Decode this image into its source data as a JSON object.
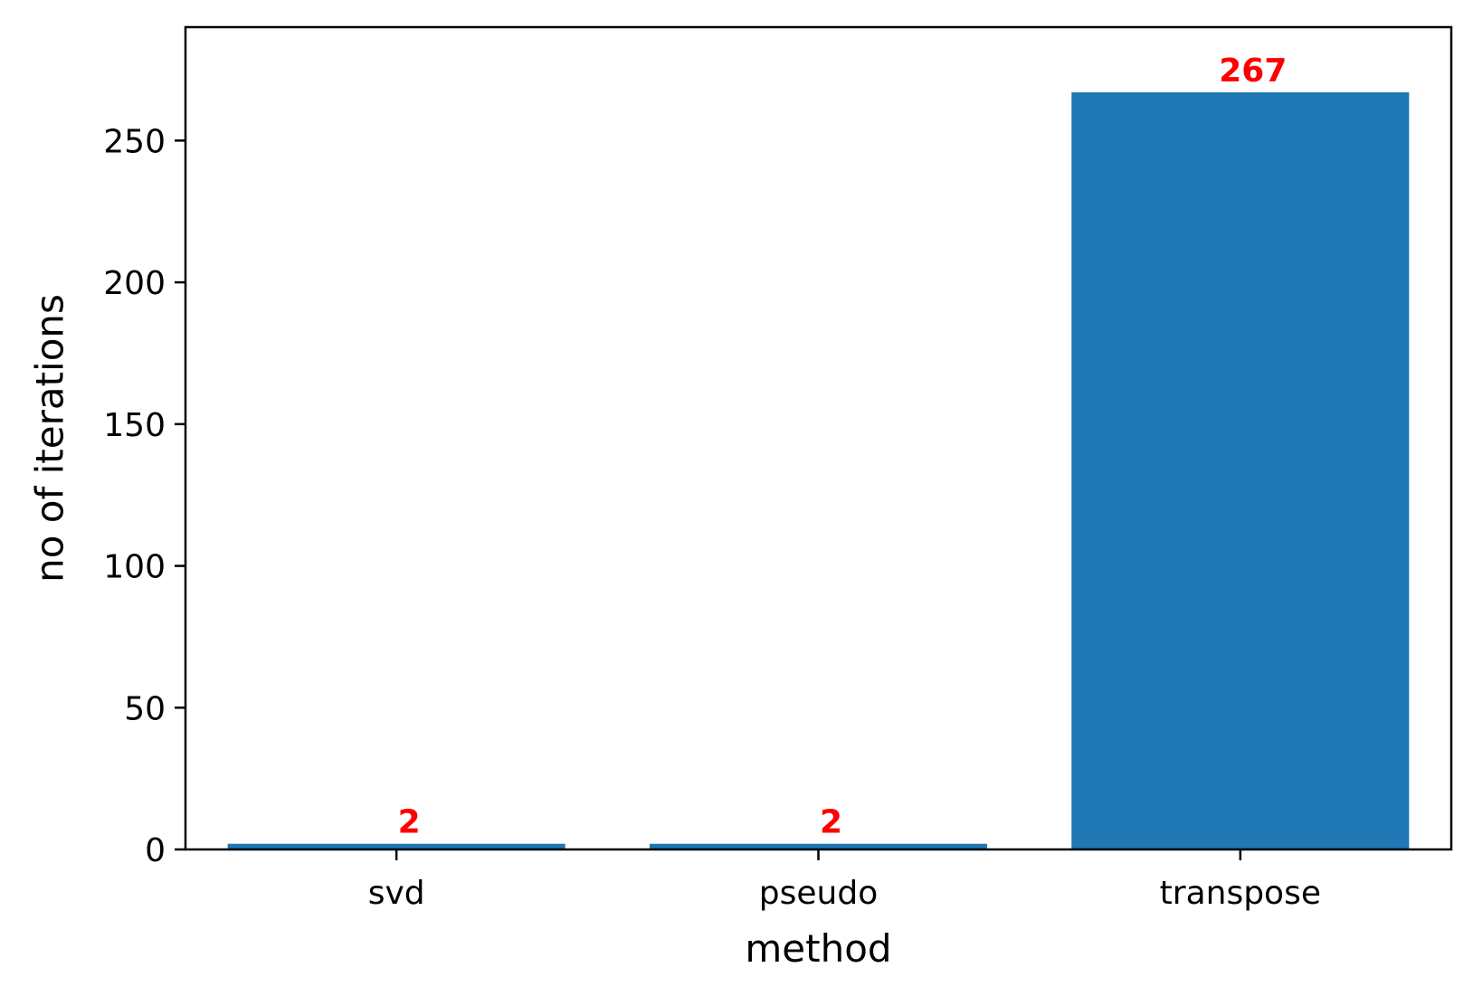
{
  "chart_data": {
    "type": "bar",
    "title": "",
    "xlabel": "method",
    "ylabel": "no of iterations",
    "categories": [
      "svd",
      "pseudo",
      "transpose"
    ],
    "values": [
      2,
      2,
      267
    ],
    "data_labels": [
      "2",
      "2",
      "267"
    ],
    "ylim": [
      0,
      290
    ],
    "yticks": [
      0,
      50,
      100,
      150,
      200,
      250
    ],
    "grid": false,
    "legend": "none",
    "colors": {
      "bar": "#1f77b4",
      "data_label": "#ff0000",
      "axis": "#000000"
    }
  }
}
